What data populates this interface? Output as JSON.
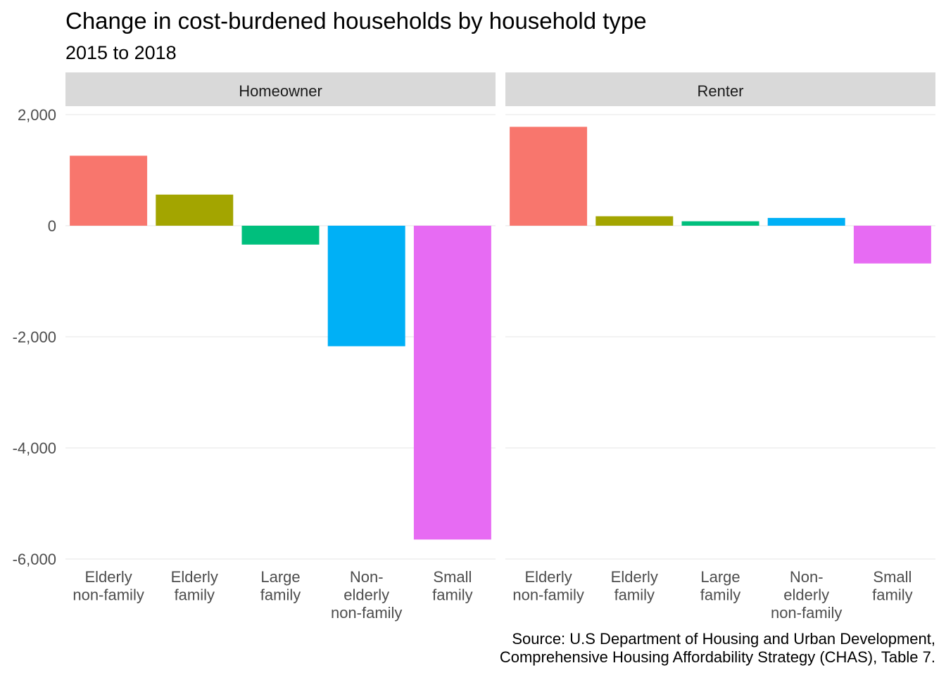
{
  "chart_data": {
    "type": "bar",
    "title": "Change in cost-burdened households by household type",
    "subtitle": "2015 to 2018",
    "caption": [
      "Source: U.S Department of Housing and Urban Development,",
      "Comprehensive Housing Affordability Strategy (CHAS), Table 7."
    ],
    "xlabel": "",
    "ylabel": "",
    "ylim": [
      -6000,
      2000
    ],
    "yticks": [
      2000,
      0,
      -2000,
      -4000,
      -6000
    ],
    "ytick_labels": [
      "2,000",
      "0",
      "-2,000",
      "-4,000",
      "-6,000"
    ],
    "grid": true,
    "legend": "none",
    "categories": [
      "Elderly non-family",
      "Elderly family",
      "Large family",
      "Non-elderly non-family",
      "Small family"
    ],
    "category_label_lines": [
      [
        "Elderly",
        "non-family"
      ],
      [
        "Elderly",
        "family"
      ],
      [
        "Large",
        "family"
      ],
      [
        "Non-",
        "elderly",
        "non-family"
      ],
      [
        "Small",
        "family"
      ]
    ],
    "colors": [
      "#F8766D",
      "#A3A500",
      "#00BF7D",
      "#00B0F6",
      "#E76BF3"
    ],
    "facets": [
      {
        "name": "Homeowner",
        "values": [
          1260,
          560,
          -340,
          -2170,
          -5650
        ]
      },
      {
        "name": "Renter",
        "values": [
          1780,
          170,
          80,
          140,
          -680
        ]
      }
    ]
  }
}
